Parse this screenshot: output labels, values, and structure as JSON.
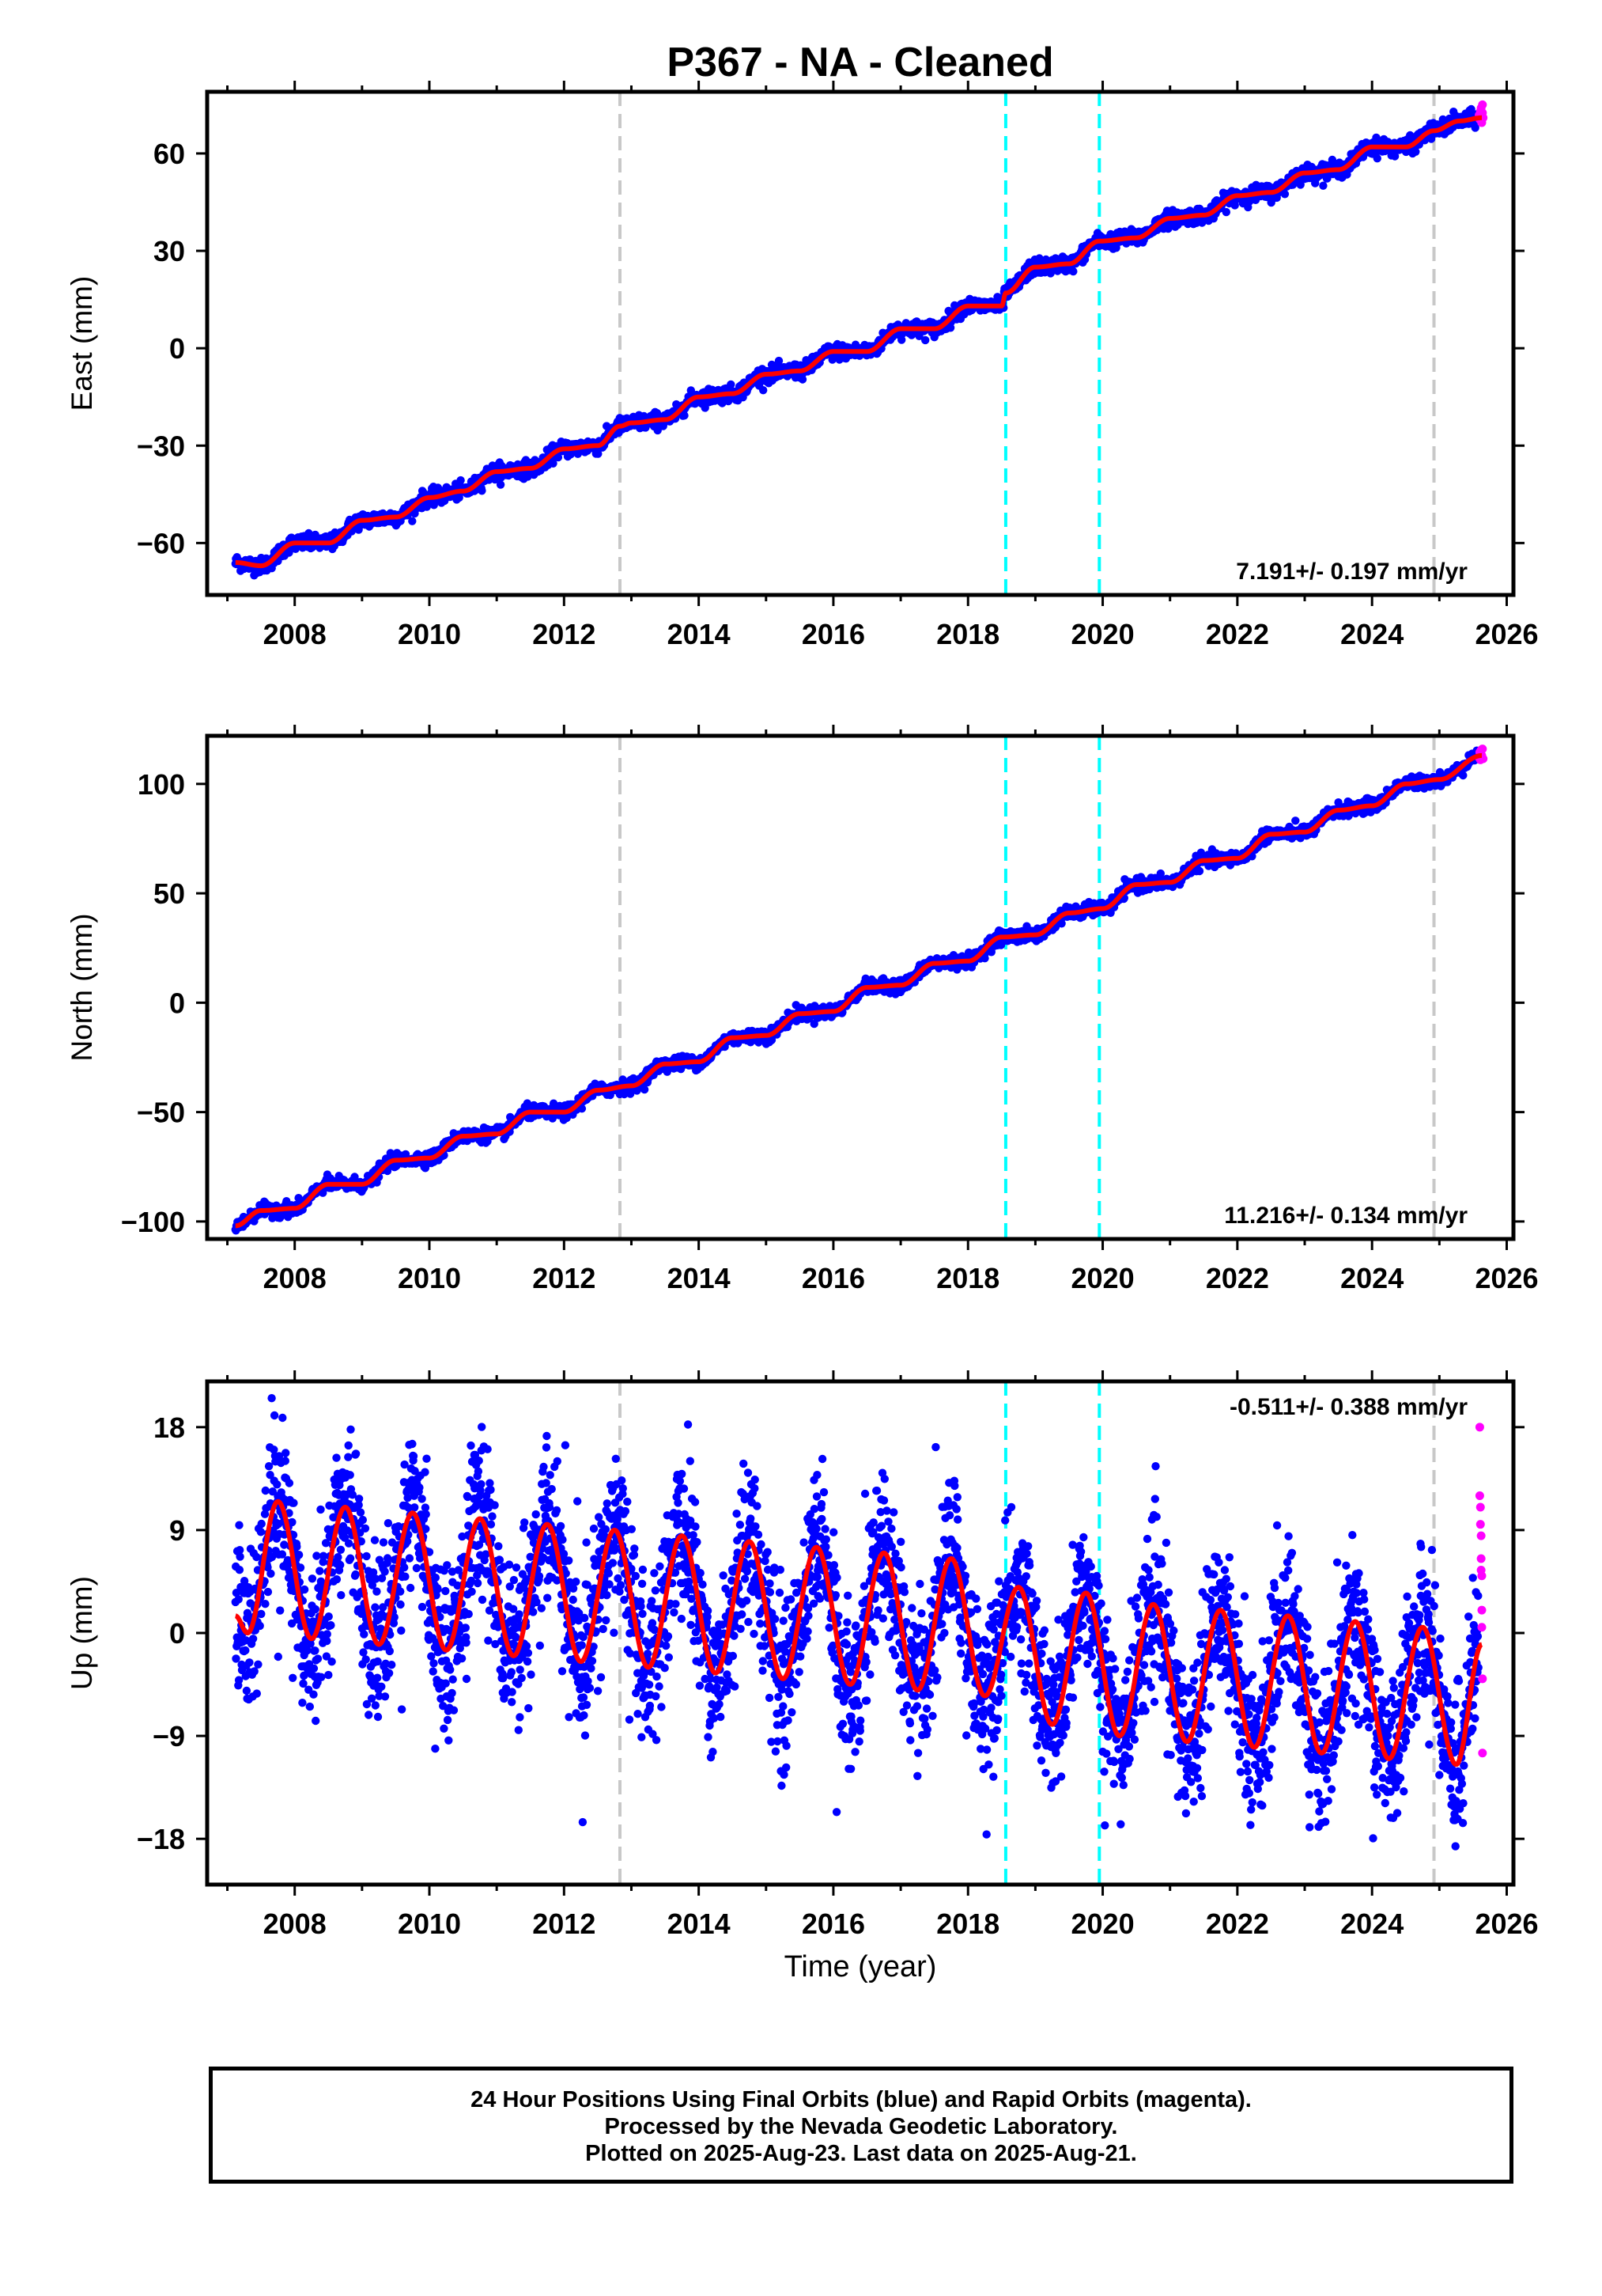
{
  "title": "P367  - NA - Cleaned",
  "colors": {
    "final_orbits": "#0000ff",
    "rapid_orbits": "#ff00ff",
    "model": "#ff0000",
    "antenna_change": "#c8c8c8",
    "earthquake": "#00ffff"
  },
  "event_lines": [
    {
      "year": 2012.83,
      "color": "#c8c8c8"
    },
    {
      "year": 2018.56,
      "color": "#00ffff"
    },
    {
      "year": 2019.95,
      "color": "#00ffff"
    },
    {
      "year": 2024.92,
      "color": "#c8c8c8"
    }
  ],
  "xaxis": {
    "range": [
      2006.7,
      2026.1
    ],
    "ticks": [
      2008,
      2010,
      2012,
      2014,
      2016,
      2018,
      2020,
      2022,
      2024,
      2026
    ],
    "label": "Time (year)"
  },
  "chart_data": [
    {
      "type": "scatter",
      "component": "East",
      "ylabel": "East (mm)",
      "ylim": [
        -76,
        79
      ],
      "yticks": [
        60,
        30,
        0,
        -30,
        -60
      ],
      "ytick_labels": [
        "60",
        "30",
        "0",
        "−30",
        "−60"
      ],
      "velocity_label": "7.191+/- 0.197 mm/yr",
      "velocity_label_position": "bottom-right",
      "model": {
        "x": [
          2007.12,
          2007.5,
          2008.0,
          2008.5,
          2009.0,
          2009.5,
          2010.0,
          2010.5,
          2011.0,
          2011.5,
          2012.0,
          2012.5,
          2012.83,
          2013.0,
          2013.5,
          2014.0,
          2014.5,
          2015.0,
          2015.5,
          2016.0,
          2016.5,
          2017.0,
          2017.5,
          2018.0,
          2018.5,
          2018.56,
          2019.0,
          2019.5,
          2019.95,
          2020.5,
          2021.0,
          2021.5,
          2022.0,
          2022.5,
          2023.0,
          2023.5,
          2024.0,
          2024.5,
          2024.92,
          2025.3,
          2025.63
        ],
        "y": [
          -66,
          -67,
          -60,
          -60,
          -53,
          -52,
          -46,
          -44,
          -38,
          -37,
          -31,
          -30,
          -24,
          -23,
          -22,
          -15,
          -14,
          -8,
          -7,
          -1,
          -1,
          6,
          6,
          13,
          13,
          17,
          25,
          26,
          33,
          34,
          40,
          41,
          47,
          48,
          54,
          55,
          62,
          62,
          67,
          70,
          71
        ]
      },
      "final_orbits_range": [
        2007.12,
        2025.58
      ],
      "rapid_orbits": {
        "x": [
          2025.59,
          2025.6,
          2025.61,
          2025.62,
          2025.62,
          2025.63,
          2025.63,
          2025.64,
          2025.64,
          2025.65
        ],
        "y": [
          71.8,
          70.5,
          73.0,
          70.0,
          74.0,
          71.5,
          69.5,
          72.5,
          75.0,
          71.0
        ]
      },
      "noise_sigma": 1.2
    },
    {
      "type": "scatter",
      "component": "North",
      "ylabel": "North (mm)",
      "ylim": [
        -108,
        122
      ],
      "yticks": [
        100,
        50,
        0,
        -50,
        -100
      ],
      "ytick_labels": [
        "100",
        "50",
        "0",
        "−50",
        "−100"
      ],
      "velocity_label": "11.216+/- 0.134 mm/yr",
      "velocity_label_position": "bottom-right",
      "model": {
        "x": [
          2007.12,
          2007.5,
          2008.0,
          2008.5,
          2009.0,
          2009.5,
          2010.0,
          2010.5,
          2011.0,
          2011.5,
          2012.0,
          2012.5,
          2013.0,
          2013.5,
          2014.0,
          2014.5,
          2015.0,
          2015.5,
          2016.0,
          2016.5,
          2017.0,
          2017.5,
          2018.0,
          2018.5,
          2019.0,
          2019.5,
          2020.0,
          2020.5,
          2021.0,
          2021.5,
          2022.0,
          2022.5,
          2023.0,
          2023.5,
          2024.0,
          2024.5,
          2025.0,
          2025.63
        ],
        "y": [
          -102,
          -95,
          -94,
          -83,
          -83,
          -72,
          -71,
          -61,
          -60,
          -50,
          -50,
          -40,
          -38,
          -28,
          -27,
          -16,
          -15,
          -5,
          -4,
          7,
          8,
          18,
          19,
          30,
          31,
          41,
          43,
          54,
          55,
          65,
          66,
          77,
          78,
          88,
          90,
          100,
          102,
          113
        ]
      },
      "final_orbits_range": [
        2007.12,
        2025.58
      ],
      "rapid_orbits": {
        "x": [
          2025.59,
          2025.6,
          2025.61,
          2025.62,
          2025.63,
          2025.64,
          2025.65
        ],
        "y": [
          112.0,
          114.5,
          111.0,
          115.5,
          113.0,
          116.0,
          111.5
        ]
      },
      "noise_sigma": 1.5
    },
    {
      "type": "scatter",
      "component": "Up",
      "ylabel": "Up (mm)",
      "ylim": [
        -22,
        22
      ],
      "yticks": [
        18,
        9,
        0,
        -9,
        -18
      ],
      "ytick_labels": [
        "18",
        "9",
        "0",
        "−9",
        "−18"
      ],
      "velocity_label": "-0.511+/- 0.388 mm/yr",
      "velocity_label_position": "top-right",
      "model": {
        "x": [
          2007.12,
          2007.3,
          2007.75,
          2008.25,
          2008.75,
          2009.25,
          2009.75,
          2010.25,
          2010.75,
          2011.25,
          2011.75,
          2012.25,
          2012.75,
          2013.25,
          2013.75,
          2014.25,
          2014.75,
          2015.25,
          2015.75,
          2016.25,
          2016.75,
          2017.25,
          2017.75,
          2018.25,
          2018.75,
          2019.25,
          2019.75,
          2020.25,
          2020.75,
          2021.25,
          2021.75,
          2022.25,
          2022.75,
          2023.25,
          2023.75,
          2024.25,
          2024.75,
          2025.25,
          2025.63
        ],
        "y": [
          1.5,
          0.0,
          11.5,
          -0.5,
          11.0,
          -1.0,
          10.5,
          -1.5,
          10.0,
          -2.0,
          9.5,
          -2.5,
          9.0,
          -3.0,
          8.5,
          -3.5,
          8.0,
          -4.0,
          7.5,
          -4.5,
          7.0,
          -5.0,
          6.5,
          -5.5,
          4.0,
          -8.0,
          3.5,
          -9.0,
          2.5,
          -9.5,
          2.0,
          -10.0,
          1.5,
          -10.5,
          1.0,
          -11.0,
          0.5,
          -11.5,
          -1.0
        ]
      },
      "final_orbits_range": [
        2007.12,
        2025.58
      ],
      "rapid_orbits": {
        "x": [
          2025.6,
          2025.6,
          2025.61,
          2025.61,
          2025.62,
          2025.62,
          2025.62,
          2025.63,
          2025.63,
          2025.63,
          2025.64,
          2025.64
        ],
        "y": [
          18.0,
          12.0,
          11.0,
          9.5,
          8.5,
          6.5,
          5.5,
          5.0,
          2.0,
          0.5,
          -10.5,
          -4.0
        ]
      },
      "noise_sigma": 3.2
    }
  ],
  "footer": {
    "line1": "24 Hour Positions Using Final Orbits (blue) and Rapid Orbits (magenta).",
    "line2": "Processed by the Nevada Geodetic Laboratory.",
    "line3": "Plotted on 2025-Aug-23. Last data on 2025-Aug-21."
  }
}
